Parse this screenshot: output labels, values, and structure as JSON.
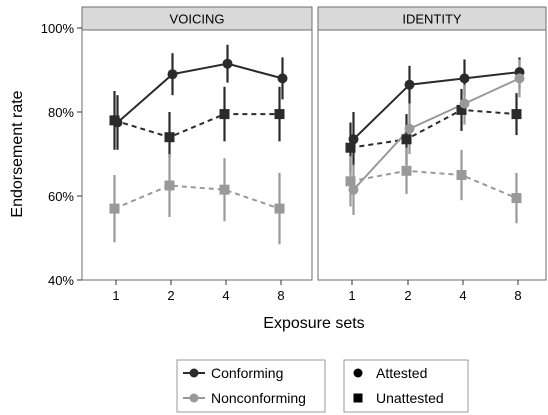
{
  "chart_data": {
    "type": "line",
    "facets": [
      "VOICING",
      "IDENTITY"
    ],
    "x": [
      "1",
      "2",
      "4",
      "8"
    ],
    "xlabel": "Exposure sets",
    "ylabel": "Endorsement rate",
    "ylim": [
      40,
      100
    ],
    "yticks": [
      "40%",
      "60%",
      "80%",
      "100%"
    ],
    "grid": false,
    "legend_placement": "bottom",
    "legend_color": {
      "entries": [
        {
          "key": "conforming",
          "label": "Conforming",
          "color": "#2b2b2b"
        },
        {
          "key": "nonconforming",
          "label": "Nonconforming",
          "color": "#999999"
        }
      ]
    },
    "legend_shape": {
      "entries": [
        {
          "key": "attested",
          "label": "Attested",
          "shape": "circle",
          "linestyle": "solid"
        },
        {
          "key": "unattested",
          "label": "Unattested",
          "shape": "square",
          "linestyle": "dashed"
        }
      ]
    },
    "series": [
      {
        "facet": 0,
        "conformity": "conforming",
        "attestation": "attested",
        "values": [
          77.5,
          89,
          91.5,
          88
        ],
        "lower": [
          71,
          84,
          87,
          83
        ],
        "upper": [
          84,
          94,
          96,
          93
        ]
      },
      {
        "facet": 0,
        "conformity": "conforming",
        "attestation": "unattested",
        "values": [
          78,
          74,
          79.5,
          79.5
        ],
        "lower": [
          71,
          69,
          73,
          73
        ],
        "upper": [
          85,
          80,
          86,
          86
        ]
      },
      {
        "facet": 0,
        "conformity": "nonconforming",
        "attestation": "unattested",
        "values": [
          57,
          62.5,
          61.5,
          57
        ],
        "lower": [
          49,
          55,
          54,
          48.5
        ],
        "upper": [
          65,
          70,
          69,
          65.5
        ]
      },
      {
        "facet": 1,
        "conformity": "conforming",
        "attestation": "attested",
        "values": [
          73.5,
          86.5,
          88,
          89.5
        ],
        "lower": [
          67,
          82,
          84,
          85.5
        ],
        "upper": [
          80,
          91,
          92.5,
          93
        ]
      },
      {
        "facet": 1,
        "conformity": "conforming",
        "attestation": "unattested",
        "values": [
          71.5,
          73.5,
          80.5,
          79.5
        ],
        "lower": [
          65.5,
          67.5,
          75.5,
          74.5
        ],
        "upper": [
          77.5,
          79.5,
          85.5,
          84.5
        ]
      },
      {
        "facet": 1,
        "conformity": "nonconforming",
        "attestation": "attested",
        "values": [
          61.5,
          76,
          82,
          88
        ],
        "lower": [
          55.5,
          70,
          77,
          83.5
        ],
        "upper": [
          67.5,
          82,
          86.5,
          92.5
        ]
      },
      {
        "facet": 1,
        "conformity": "nonconforming",
        "attestation": "unattested",
        "values": [
          63.5,
          66,
          65,
          59.5
        ],
        "lower": [
          57.5,
          60.5,
          59,
          53.5
        ],
        "upper": [
          69.5,
          71.5,
          71,
          65.5
        ]
      }
    ]
  }
}
